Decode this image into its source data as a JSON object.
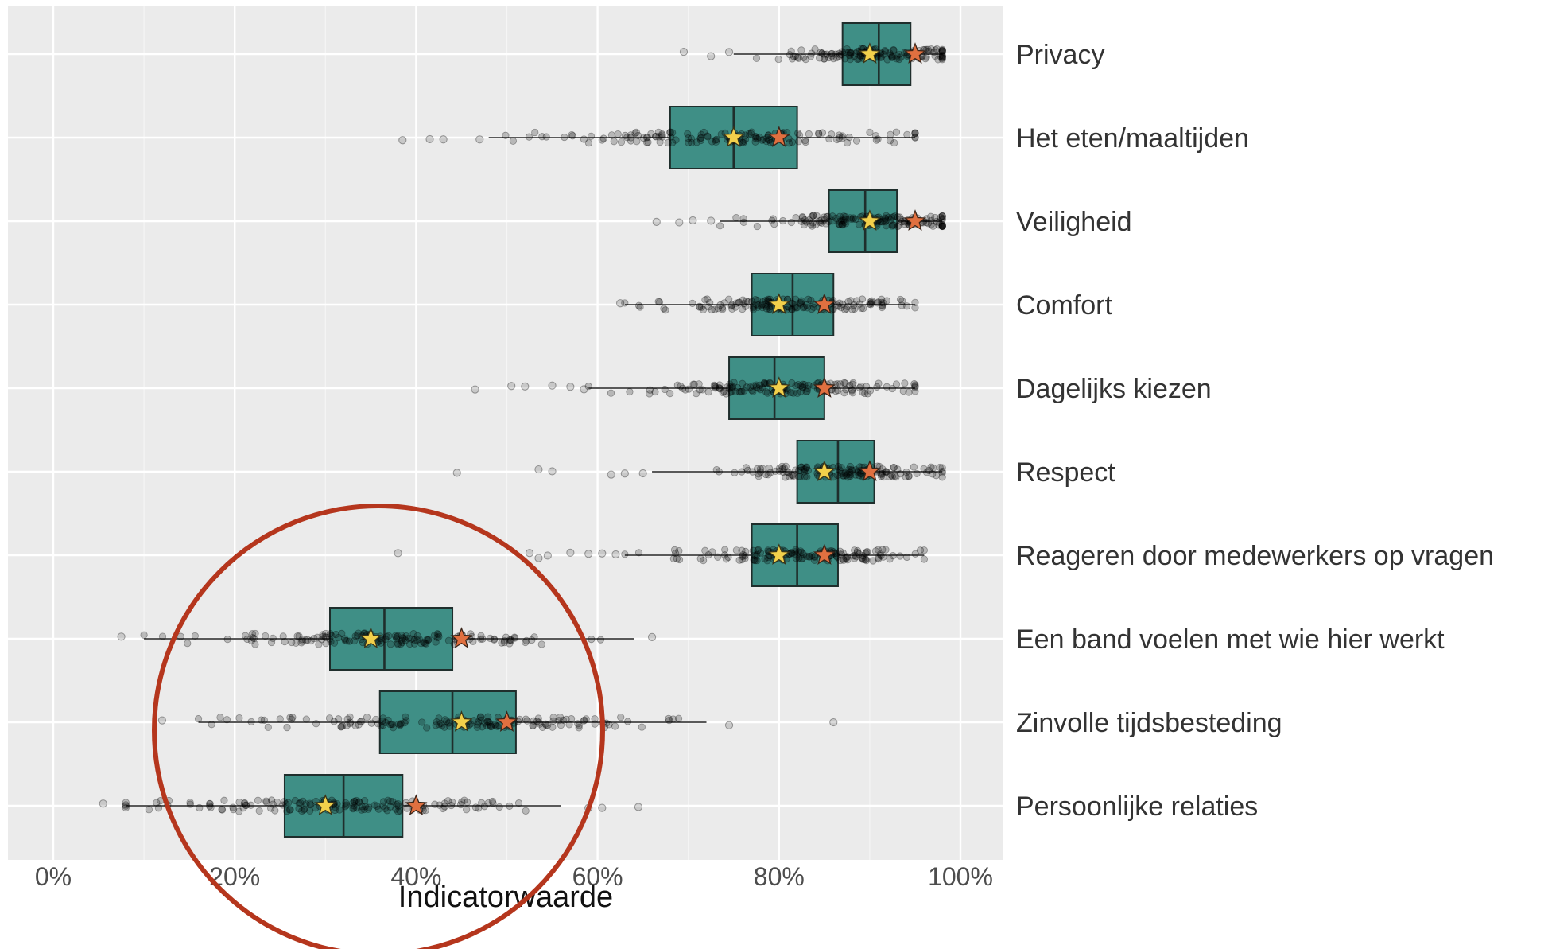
{
  "chart_data": {
    "type": "boxplot",
    "xlabel": "Indicatorwaarde",
    "xlim": [
      -5,
      105
    ],
    "x_ticks": [
      0,
      20,
      40,
      60,
      80,
      100
    ],
    "x_tick_labels": [
      "0%",
      "20%",
      "40%",
      "60%",
      "80%",
      "100%"
    ],
    "grid": true,
    "panel_background": "#ebebeb",
    "colors": {
      "box_fill": "#3f8f86",
      "box_edge": "#1f2e2c",
      "star_mean": "#f2d04b",
      "star_target": "#e07040",
      "highlight_circle": "#b5361d"
    },
    "highlight": {
      "shape": "circle",
      "categories": [
        "Een band voelen met wie hier werkt",
        "Zinvolle tijdsbesteding",
        "Persoonlijke relaties"
      ]
    },
    "categories": [
      {
        "name": "Privacy",
        "whisker_low": 75,
        "q1": 87,
        "median": 91,
        "q3": 94.5,
        "whisker_high": 98,
        "yellow_star": 90,
        "orange_star": 95,
        "outliers": [
          69.5,
          72.5,
          74.5
        ]
      },
      {
        "name": "Het eten/maaltijden",
        "whisker_low": 48,
        "q1": 68,
        "median": 75,
        "q3": 82,
        "whisker_high": 95,
        "yellow_star": 75,
        "orange_star": 80,
        "outliers": [
          38.5,
          41.5,
          43,
          47
        ]
      },
      {
        "name": "Veiligheid",
        "whisker_low": 73.5,
        "q1": 85.5,
        "median": 89.5,
        "q3": 93,
        "whisker_high": 98,
        "yellow_star": 90,
        "orange_star": 95,
        "outliers": [
          66.5,
          69,
          70.5,
          72.5
        ]
      },
      {
        "name": "Comfort",
        "whisker_low": 63,
        "q1": 77,
        "median": 81.5,
        "q3": 86,
        "whisker_high": 95,
        "yellow_star": 80,
        "orange_star": 85,
        "outliers": [
          62.5
        ]
      },
      {
        "name": "Dagelijks kiezen",
        "whisker_low": 59,
        "q1": 74.5,
        "median": 79.5,
        "q3": 85,
        "whisker_high": 95,
        "yellow_star": 80,
        "orange_star": 85,
        "outliers": [
          46.5,
          50.5,
          52,
          55,
          57,
          58.5
        ]
      },
      {
        "name": "Respect",
        "whisker_low": 66,
        "q1": 82,
        "median": 86.5,
        "q3": 90.5,
        "whisker_high": 98,
        "yellow_star": 85,
        "orange_star": 90,
        "outliers": [
          44.5,
          53.5,
          55,
          61.5,
          63,
          65
        ]
      },
      {
        "name": "Reageren door medewerkers op vragen",
        "whisker_low": 63,
        "q1": 77,
        "median": 82,
        "q3": 86.5,
        "whisker_high": 96,
        "yellow_star": 80,
        "orange_star": 85,
        "outliers": [
          38,
          52.5,
          53.5,
          54.5,
          57,
          59,
          60.5,
          62
        ]
      },
      {
        "name": "Een band voelen met wie hier werkt",
        "whisker_low": 10,
        "q1": 30.5,
        "median": 36.5,
        "q3": 44,
        "whisker_high": 64,
        "yellow_star": 35,
        "orange_star": 45,
        "outliers": [
          7.5,
          66
        ]
      },
      {
        "name": "Zinvolle tijdsbesteding",
        "whisker_low": 16,
        "q1": 36,
        "median": 44,
        "q3": 51,
        "whisker_high": 72,
        "yellow_star": 45,
        "orange_star": 50,
        "outliers": [
          12,
          74.5,
          86
        ]
      },
      {
        "name": "Persoonlijke relaties",
        "whisker_low": 8,
        "q1": 25.5,
        "median": 32,
        "q3": 38.5,
        "whisker_high": 56,
        "yellow_star": 30,
        "orange_star": 40,
        "outliers": [
          5.5,
          59,
          60.5,
          64.5
        ]
      }
    ]
  }
}
